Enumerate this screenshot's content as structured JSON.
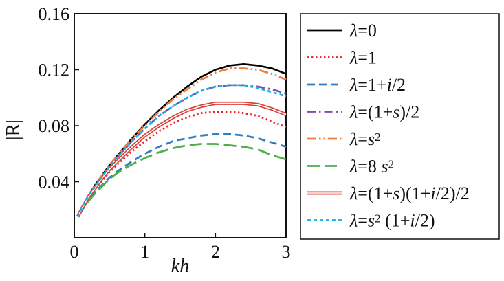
{
  "chart_data": {
    "type": "line",
    "xlabel": "kh",
    "ylabel": "|R|",
    "xlim": [
      0,
      3
    ],
    "ylim": [
      0,
      0.16
    ],
    "x_ticks": [
      0,
      1,
      2,
      3
    ],
    "x_tick_labels": [
      "0",
      "1",
      "2",
      "3"
    ],
    "y_ticks": [
      0.04,
      0.08,
      0.12,
      0.16
    ],
    "y_tick_labels": [
      "0.04",
      "0.08",
      "0.12",
      "0.16"
    ],
    "grid": false,
    "legend_position": "right, outside plot",
    "x": [
      0.05,
      0.1,
      0.2,
      0.3,
      0.4,
      0.5,
      0.6,
      0.8,
      1.0,
      1.2,
      1.4,
      1.6,
      1.8,
      2.0,
      2.2,
      2.4,
      2.6,
      2.8,
      3.0
    ],
    "series": [
      {
        "name": "λ=0",
        "legend_parts": [
          {
            "t": "λ",
            "i": true
          },
          {
            "t": "=0"
          }
        ],
        "color": "#000000",
        "dash": "solid",
        "values": [
          0.015,
          0.021,
          0.03,
          0.038,
          0.045,
          0.052,
          0.058,
          0.07,
          0.081,
          0.091,
          0.1,
          0.108,
          0.115,
          0.12,
          0.123,
          0.124,
          0.123,
          0.121,
          0.117
        ]
      },
      {
        "name": "λ=1",
        "legend_parts": [
          {
            "t": "λ",
            "i": true
          },
          {
            "t": "=1"
          }
        ],
        "color": "#e8262b",
        "dash": "dotted",
        "values": [
          0.015,
          0.02,
          0.028,
          0.035,
          0.041,
          0.047,
          0.052,
          0.061,
          0.069,
          0.076,
          0.082,
          0.086,
          0.089,
          0.09,
          0.09,
          0.089,
          0.087,
          0.083,
          0.079
        ]
      },
      {
        "name": "λ=1+i/2",
        "legend_parts": [
          {
            "t": "λ",
            "i": true
          },
          {
            "t": "=1+"
          },
          {
            "t": "i",
            "i": true
          },
          {
            "t": "/2"
          }
        ],
        "color": "#2e7fc1",
        "dash": "dashed",
        "values": [
          0.015,
          0.019,
          0.027,
          0.033,
          0.038,
          0.043,
          0.047,
          0.054,
          0.06,
          0.065,
          0.069,
          0.071,
          0.073,
          0.074,
          0.074,
          0.073,
          0.071,
          0.068,
          0.065
        ]
      },
      {
        "name": "λ=(1+s)/2",
        "legend_parts": [
          {
            "t": "λ",
            "i": true
          },
          {
            "t": "=(1+"
          },
          {
            "t": "s",
            "i": true
          },
          {
            "t": ")/2"
          }
        ],
        "color": "#7b4fa8",
        "dash": "dashdot",
        "values": [
          0.015,
          0.021,
          0.03,
          0.037,
          0.044,
          0.051,
          0.057,
          0.068,
          0.078,
          0.087,
          0.094,
          0.1,
          0.105,
          0.108,
          0.109,
          0.109,
          0.108,
          0.106,
          0.103
        ]
      },
      {
        "name": "λ=s2",
        "legend_parts": [
          {
            "t": "λ",
            "i": true
          },
          {
            "t": "="
          },
          {
            "t": "s",
            "i": true
          },
          {
            "t": "2",
            "sup": true
          }
        ],
        "color": "#f07e3a",
        "dash": "dashdotdot",
        "values": [
          0.015,
          0.021,
          0.03,
          0.038,
          0.045,
          0.052,
          0.058,
          0.07,
          0.08,
          0.09,
          0.099,
          0.106,
          0.113,
          0.118,
          0.121,
          0.121,
          0.12,
          0.117,
          0.113
        ]
      },
      {
        "name": "λ=8 s2",
        "legend_parts": [
          {
            "t": "λ",
            "i": true
          },
          {
            "t": "=8 "
          },
          {
            "t": "s",
            "i": true
          },
          {
            "t": "2",
            "sup": true
          }
        ],
        "color": "#4cae4c",
        "dash": "longdash",
        "values": [
          0.015,
          0.019,
          0.026,
          0.032,
          0.037,
          0.042,
          0.046,
          0.052,
          0.057,
          0.061,
          0.064,
          0.066,
          0.067,
          0.067,
          0.066,
          0.065,
          0.063,
          0.059,
          0.056
        ]
      },
      {
        "name": "λ=(1+s)(1+i/2)/2",
        "legend_parts": [
          {
            "t": "λ",
            "i": true
          },
          {
            "t": "=(1+"
          },
          {
            "t": "s",
            "i": true
          },
          {
            "t": ")(1+"
          },
          {
            "t": "i",
            "i": true
          },
          {
            "t": "/2)/2"
          }
        ],
        "color": "#d9403a",
        "dash": "double",
        "values": [
          0.015,
          0.02,
          0.029,
          0.036,
          0.043,
          0.049,
          0.054,
          0.064,
          0.073,
          0.08,
          0.086,
          0.091,
          0.094,
          0.096,
          0.096,
          0.096,
          0.095,
          0.092,
          0.088
        ]
      },
      {
        "name": "λ=s2 (1+i/2)",
        "legend_parts": [
          {
            "t": "λ",
            "i": true
          },
          {
            "t": "="
          },
          {
            "t": "s",
            "i": true
          },
          {
            "t": "2",
            "sup": true
          },
          {
            "t": " (1+"
          },
          {
            "t": "i",
            "i": true
          },
          {
            "t": "/2)"
          }
        ],
        "color": "#1ab0e8",
        "dash": "shortdash",
        "values": [
          0.015,
          0.021,
          0.03,
          0.037,
          0.044,
          0.051,
          0.057,
          0.068,
          0.078,
          0.087,
          0.094,
          0.1,
          0.105,
          0.108,
          0.109,
          0.109,
          0.107,
          0.104,
          0.101
        ]
      }
    ]
  }
}
